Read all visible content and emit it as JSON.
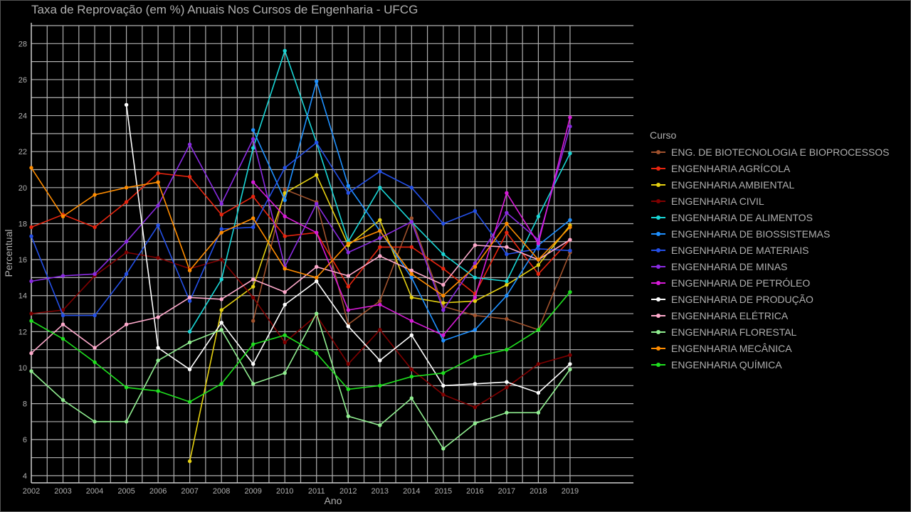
{
  "chart_data": {
    "type": "line",
    "title": "Taxa de Reprovação (em %) Anuais Nos Cursos de Engenharia - UFCG",
    "xlabel": "Ano",
    "ylabel": "Percentual",
    "legend_title": "Curso",
    "legend_position": "right",
    "grid": true,
    "background": "#000000",
    "grid_color": "#b0b0b0",
    "x": [
      2002,
      2003,
      2004,
      2005,
      2006,
      2007,
      2008,
      2009,
      2010,
      2011,
      2012,
      2013,
      2014,
      2015,
      2016,
      2017,
      2018,
      2019
    ],
    "xlim": [
      2002,
      2021
    ],
    "ylim": [
      3.6,
      29
    ],
    "yticks": [
      4,
      6,
      8,
      10,
      12,
      14,
      16,
      18,
      20,
      22,
      24,
      26,
      28
    ],
    "series": [
      {
        "name": "ENG. DE BIOTECNOLOGIA E BIOPROCESSOS",
        "color": "#a0522d",
        "values": [
          null,
          null,
          null,
          null,
          null,
          null,
          null,
          12.6,
          19.9,
          19.2,
          12.4,
          13.7,
          18.3,
          13.4,
          12.9,
          12.7,
          12.1,
          16.4
        ]
      },
      {
        "name": "ENGENHARIA AGRÍCOLA",
        "color": "#e8250f",
        "values": [
          17.8,
          18.5,
          17.8,
          19.2,
          20.8,
          20.6,
          18.5,
          19.5,
          17.3,
          17.5,
          14.5,
          16.7,
          16.7,
          15.5,
          14.1,
          17.5,
          15.2,
          17.1
        ]
      },
      {
        "name": "ENGENHARIA AMBIENTAL",
        "color": "#e5d010",
        "values": [
          null,
          null,
          null,
          null,
          null,
          4.8,
          13.2,
          14.5,
          19.7,
          20.7,
          16.8,
          18.2,
          13.9,
          13.6,
          13.7,
          14.6,
          15.7,
          17.9
        ]
      },
      {
        "name": "ENGENHARIA CIVIL",
        "color": "#800000",
        "values": [
          13.0,
          13.2,
          15.1,
          16.4,
          16.1,
          15.5,
          16.0,
          13.9,
          11.4,
          12.9,
          10.2,
          12.1,
          9.9,
          8.5,
          7.8,
          8.9,
          10.2,
          10.7
        ]
      },
      {
        "name": "ENGENHARIA DE ALIMENTOS",
        "color": "#19d6d6",
        "values": [
          null,
          null,
          null,
          null,
          null,
          12.0,
          14.9,
          22.2,
          27.6,
          22.5,
          17.0,
          20.0,
          18.1,
          16.3,
          15.0,
          14.8,
          18.4,
          21.9
        ]
      },
      {
        "name": "ENGENHARIA DE BIOSSISTEMAS",
        "color": "#1e90ff",
        "values": [
          null,
          null,
          null,
          null,
          null,
          null,
          null,
          23.2,
          19.3,
          25.9,
          20.1,
          17.6,
          15.0,
          11.5,
          12.1,
          14.0,
          16.8,
          18.2
        ]
      },
      {
        "name": "ENGENHARIA DE MATERIAIS",
        "color": "#2450e8",
        "values": [
          17.3,
          12.9,
          12.9,
          15.2,
          17.9,
          13.7,
          17.7,
          17.8,
          21.1,
          22.5,
          19.7,
          20.9,
          20.0,
          18.0,
          18.7,
          16.3,
          16.6,
          16.5
        ]
      },
      {
        "name": "ENGENHARIA DE MINAS",
        "color": "#8a2be2",
        "values": [
          14.8,
          15.1,
          15.2,
          17.0,
          19.0,
          22.4,
          19.1,
          22.7,
          15.6,
          19.1,
          16.4,
          17.2,
          18.1,
          13.2,
          15.8,
          18.6,
          17.1,
          23.4
        ]
      },
      {
        "name": "ENGENHARIA DE PETRÓLEO",
        "color": "#d81bd8",
        "values": [
          null,
          null,
          null,
          null,
          null,
          null,
          null,
          20.3,
          18.4,
          17.5,
          13.2,
          13.5,
          12.6,
          11.8,
          13.9,
          19.7,
          16.9,
          23.9
        ]
      },
      {
        "name": "ENGENHARIA DE PRODUÇÃO",
        "color": "#ffffff",
        "values": [
          null,
          null,
          null,
          24.6,
          11.1,
          9.9,
          12.5,
          10.2,
          13.5,
          14.8,
          12.3,
          10.4,
          11.8,
          9.0,
          9.1,
          9.2,
          8.6,
          10.2
        ]
      },
      {
        "name": "ENGENHARIA ELÉTRICA",
        "color": "#ffaacc",
        "values": [
          10.8,
          12.4,
          11.1,
          12.4,
          12.8,
          13.9,
          13.8,
          14.9,
          14.2,
          15.6,
          15.1,
          16.2,
          15.4,
          14.6,
          16.8,
          16.7,
          16.0,
          17.1
        ]
      },
      {
        "name": "ENGENHARIA FLORESTAL",
        "color": "#90ee90",
        "values": [
          9.8,
          8.2,
          7.0,
          7.0,
          10.4,
          11.4,
          12.1,
          9.1,
          9.7,
          13.0,
          7.3,
          6.8,
          8.3,
          5.5,
          6.9,
          7.5,
          7.5,
          9.9
        ]
      },
      {
        "name": "ENGENHARIA MECÂNICA",
        "color": "#ff8c00",
        "values": [
          21.1,
          18.4,
          19.6,
          20.0,
          20.3,
          15.4,
          17.5,
          18.3,
          15.5,
          15.0,
          16.9,
          17.6,
          15.2,
          14.0,
          15.6,
          18.0,
          16.0,
          17.8
        ]
      },
      {
        "name": "ENGENHARIA QUÍMICA",
        "color": "#1fe01f",
        "values": [
          12.6,
          11.6,
          10.3,
          8.9,
          8.7,
          8.1,
          9.1,
          11.3,
          11.8,
          10.8,
          8.8,
          9.0,
          9.5,
          9.7,
          10.6,
          11.0,
          12.1,
          14.2
        ]
      }
    ]
  }
}
